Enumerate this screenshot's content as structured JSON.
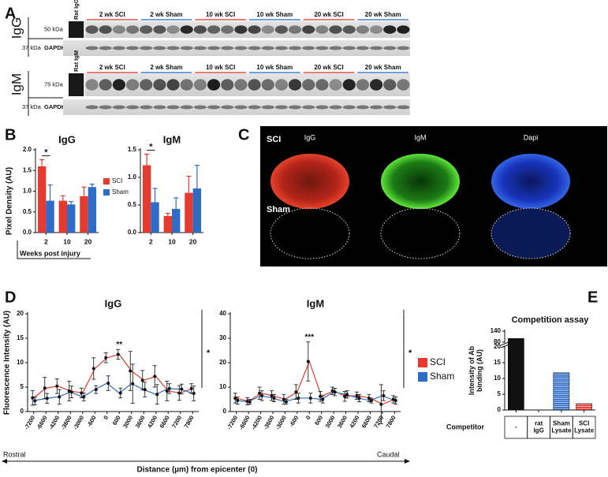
{
  "figure": {
    "panel_labels": [
      "A",
      "B",
      "C",
      "D",
      "E"
    ]
  },
  "blot": {
    "igg_label": "IgG",
    "igm_label": "IgM",
    "rat_igg": "Rat IgG",
    "rat_igm": "Rat IgM",
    "igg_kda": "50 kDa",
    "igm_kda": "75 kDa",
    "gapdh_kda": "37 kDa",
    "gapdh": "GAPDH",
    "groups": [
      {
        "name": "2 wk SCI",
        "color": "#e0504a"
      },
      {
        "name": "2 wk Sham",
        "color": "#4a7fd0"
      },
      {
        "name": "10 wk SCI",
        "color": "#e0504a"
      },
      {
        "name": "10 wk Sham",
        "color": "#4a7fd0"
      },
      {
        "name": "20 wk SCI",
        "color": "#e0504a"
      },
      {
        "name": "20 wk Sham",
        "color": "#4a7fd0"
      }
    ]
  },
  "micro": {
    "rows": [
      "SCI",
      "Sham"
    ],
    "columns": [
      "IgG",
      "IgM",
      "Dapi"
    ]
  },
  "chart_data": [
    {
      "type": "bar",
      "title": "IgG",
      "ylabel": "Pixel Density (AU)",
      "xlabel": "Weeks post injury",
      "categories": [
        "2",
        "10",
        "20"
      ],
      "ylim": [
        0,
        2
      ],
      "yticks": [
        {
          "value": 0,
          "label": "0.0"
        },
        {
          "value": 0.5,
          "label": "0.5"
        },
        {
          "value": 1,
          "label": "1.0"
        },
        {
          "value": 1.5,
          "label": "1.5"
        },
        {
          "value": 2,
          "label": "2.0"
        }
      ],
      "series": [
        {
          "name": "SCI",
          "color": "#e53a2f",
          "values": [
            1.6,
            0.77,
            0.88
          ],
          "errors": [
            0.16,
            0.12,
            0.22
          ]
        },
        {
          "name": "Sham",
          "color": "#2e6cc7",
          "values": [
            0.77,
            0.68,
            1.1
          ],
          "errors": [
            0.38,
            0.07,
            0.07
          ]
        }
      ],
      "significance": "*",
      "legend": "right"
    },
    {
      "type": "bar",
      "title": "IgM",
      "categories": [
        "2",
        "10",
        "20"
      ],
      "ylim": [
        0,
        1.5
      ],
      "yticks": [
        {
          "value": 0,
          "label": "0.0"
        },
        {
          "value": 0.5,
          "label": "0.5"
        },
        {
          "value": 1,
          "label": "1.0"
        },
        {
          "value": 1.5,
          "label": "1.5"
        }
      ],
      "series": [
        {
          "color": "#e53a2f",
          "values": [
            1.22,
            0.3,
            0.72
          ],
          "errors": [
            0.2,
            0.05,
            0.3
          ]
        },
        {
          "color": "#2e6cc7",
          "values": [
            0.55,
            0.43,
            0.8
          ],
          "errors": [
            0.25,
            0.2,
            0.42
          ]
        }
      ],
      "significance": "*"
    },
    {
      "type": "line",
      "title": "IgG",
      "ylabel": "Fluorescence Intensity (AU)",
      "xlabel": "Distance (µm) from epicenter (0)",
      "x_start_label": "Rostral",
      "x_end_label": "Caudal",
      "categories": [
        "-7200",
        "-6600",
        "-4200",
        "-3600",
        "-3000",
        "-600",
        "0",
        "600",
        "3000",
        "3600",
        "4200",
        "6600",
        "7200",
        "7800"
      ],
      "ylim": [
        0,
        20
      ],
      "yticks": [
        0,
        5,
        10,
        15,
        20
      ],
      "marker_color": "#111",
      "series": [
        {
          "color": "#e53a2f",
          "values": [
            2.8,
            4.8,
            5.2,
            4.2,
            3.8,
            8.8,
            11,
            11.7,
            8.3,
            6.4,
            7.2,
            4.2,
            3.8,
            4.7
          ],
          "errors": [
            1.5,
            2.2,
            1.5,
            2,
            1,
            2.2,
            1,
            1,
            4,
            2,
            2.2,
            2,
            1.5,
            1
          ]
        },
        {
          "color": "#2e6cc7",
          "values": [
            2.2,
            2.7,
            3,
            4,
            3,
            4.5,
            5.8,
            3.8,
            5.7,
            4.5,
            3.5,
            4.7,
            4.6,
            3.7
          ],
          "errors": [
            0.8,
            1,
            1.5,
            1.2,
            0.8,
            0.8,
            1.5,
            1,
            4,
            1.5,
            2,
            1,
            1,
            1.5
          ]
        }
      ],
      "peak_annotation": "**",
      "significance": "*"
    },
    {
      "type": "line",
      "title": "IgM",
      "categories": [
        "-7200",
        "-6600",
        "-4200",
        "-3600",
        "-3000",
        "-600",
        "0",
        "600",
        "3000",
        "3600",
        "4200",
        "6600",
        "7200",
        "7800"
      ],
      "ylim": [
        0,
        40
      ],
      "yticks": [
        0,
        10,
        20,
        30,
        40
      ],
      "marker_color": "#111",
      "series": [
        {
          "name": "SCI",
          "color": "#e53a2f",
          "values": [
            5.5,
            4.2,
            7.5,
            6.5,
            5,
            8,
            20.5,
            6.2,
            8.5,
            6.2,
            6.5,
            5.5,
            3,
            5
          ],
          "errors": [
            2,
            1.5,
            2.5,
            2,
            2,
            3,
            8,
            2,
            1.5,
            2,
            1.5,
            1.5,
            8,
            1.5
          ]
        },
        {
          "name": "Sham",
          "color": "#2e6cc7",
          "values": [
            4.5,
            4,
            6.5,
            5.5,
            4,
            5.5,
            5.5,
            5,
            8,
            7,
            5.5,
            4.5,
            6.5,
            4.5
          ],
          "errors": [
            1.5,
            1,
            2,
            1.5,
            1,
            2,
            2,
            1.5,
            1.5,
            1.5,
            1.5,
            1,
            2,
            1.5
          ]
        }
      ],
      "peak_annotation": "***",
      "significance": "*",
      "legend": "right"
    },
    {
      "type": "bar",
      "title": "Competition assay",
      "ylabel": "Intensity of Ab binding (AU)",
      "xlabel": "Competitor",
      "categories": [
        "-",
        "rat IgG",
        "Sham Lysate",
        "SCI Lysate"
      ],
      "values": [
        100,
        0,
        11.8,
        2
      ],
      "colors": [
        "#111111",
        "#111111",
        "#2e6cc7",
        "#e53a2f"
      ],
      "ylim": [
        0,
        140
      ],
      "ybreak": [
        20,
        80
      ],
      "yticks": [
        0,
        5,
        10,
        15,
        20,
        80,
        140
      ]
    }
  ]
}
